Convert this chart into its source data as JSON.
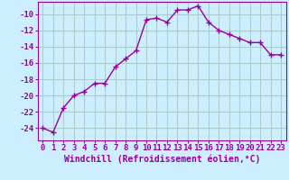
{
  "x": [
    0,
    1,
    2,
    3,
    4,
    5,
    6,
    7,
    8,
    9,
    10,
    11,
    12,
    13,
    14,
    15,
    16,
    17,
    18,
    19,
    20,
    21,
    22,
    23
  ],
  "y": [
    -24.0,
    -24.5,
    -21.5,
    -20.0,
    -19.5,
    -18.5,
    -18.5,
    -16.5,
    -15.5,
    -14.5,
    -10.7,
    -10.5,
    -11.0,
    -9.5,
    -9.5,
    -9.0,
    -11.0,
    -12.0,
    -12.5,
    -13.0,
    -13.5,
    -13.5,
    -15.0,
    -15.0
  ],
  "line_color": "#990099",
  "marker": "+",
  "marker_size": 4,
  "marker_lw": 1.0,
  "line_width": 1.0,
  "bg_color": "#cceeff",
  "grid_color": "#aacccc",
  "xlabel": "Windchill (Refroidissement éolien,°C)",
  "xlabel_color": "#990099",
  "xlabel_fontsize": 7.0,
  "tick_color": "#990099",
  "tick_fontsize": 6.5,
  "ylim": [
    -25.5,
    -8.5
  ],
  "yticks": [
    -24,
    -22,
    -20,
    -18,
    -16,
    -14,
    -12,
    -10
  ],
  "xlim": [
    -0.5,
    23.5
  ],
  "xticks": [
    0,
    1,
    2,
    3,
    4,
    5,
    6,
    7,
    8,
    9,
    10,
    11,
    12,
    13,
    14,
    15,
    16,
    17,
    18,
    19,
    20,
    21,
    22,
    23
  ]
}
